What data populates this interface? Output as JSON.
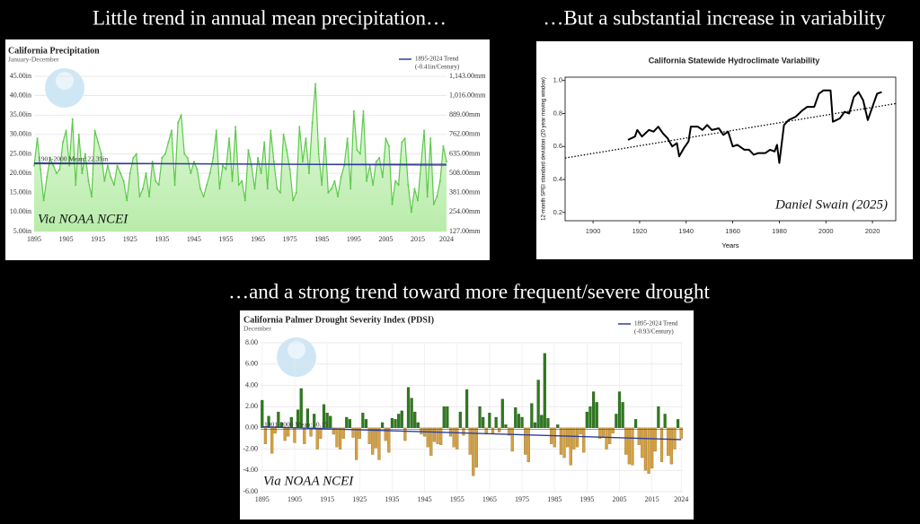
{
  "slide": {
    "headings": [
      "Little trend in annual mean precipitation…",
      "…But a substantial increase in variability",
      "…and a strong trend toward more frequent/severe drought"
    ]
  },
  "chart_data": [
    {
      "type": "line",
      "title": "California Precipitation",
      "subtitle": "January-December",
      "color": "#5cc94a",
      "fill_area": true,
      "fill_color": "#c8f0bd",
      "grid": true,
      "legend": "top-right",
      "annotation": "Via NOAA NCEI",
      "x": [
        1895,
        1896,
        1897,
        1898,
        1899,
        1900,
        1901,
        1902,
        1903,
        1904,
        1905,
        1906,
        1907,
        1908,
        1909,
        1910,
        1911,
        1912,
        1913,
        1914,
        1915,
        1916,
        1917,
        1918,
        1919,
        1920,
        1921,
        1922,
        1923,
        1924,
        1925,
        1926,
        1927,
        1928,
        1929,
        1930,
        1931,
        1932,
        1933,
        1934,
        1935,
        1936,
        1937,
        1938,
        1939,
        1940,
        1941,
        1942,
        1943,
        1944,
        1945,
        1946,
        1947,
        1948,
        1949,
        1950,
        1951,
        1952,
        1953,
        1954,
        1955,
        1956,
        1957,
        1958,
        1959,
        1960,
        1961,
        1962,
        1963,
        1964,
        1965,
        1966,
        1967,
        1968,
        1969,
        1970,
        1971,
        1972,
        1973,
        1974,
        1975,
        1976,
        1977,
        1978,
        1979,
        1980,
        1981,
        1982,
        1983,
        1984,
        1985,
        1986,
        1987,
        1988,
        1989,
        1990,
        1991,
        1992,
        1993,
        1994,
        1995,
        1996,
        1997,
        1998,
        1999,
        2000,
        2001,
        2002,
        2003,
        2004,
        2005,
        2006,
        2007,
        2008,
        2009,
        2010,
        2011,
        2012,
        2013,
        2014,
        2015,
        2016,
        2017,
        2018,
        2019,
        2020,
        2021,
        2022,
        2023,
        2024
      ],
      "values": [
        22,
        29,
        21,
        13,
        19,
        24,
        22,
        20,
        21,
        28,
        31,
        22,
        34,
        17,
        30,
        20,
        25,
        18,
        14,
        31,
        28,
        25,
        18,
        22,
        19,
        17,
        22,
        20,
        18,
        13,
        20,
        24,
        25,
        14,
        16,
        20,
        14,
        23,
        18,
        17,
        24,
        25,
        28,
        31,
        17,
        33,
        35,
        25,
        24,
        20,
        23,
        21,
        16,
        14,
        17,
        20,
        24,
        31,
        16,
        22,
        21,
        29,
        18,
        32,
        17,
        18,
        13,
        26,
        22,
        16,
        24,
        20,
        28,
        16,
        31,
        23,
        16,
        15,
        30,
        26,
        21,
        13,
        15,
        32,
        23,
        29,
        20,
        33,
        43,
        25,
        17,
        29,
        15,
        16,
        18,
        14,
        19,
        22,
        29,
        16,
        36,
        26,
        25,
        36,
        18,
        22,
        17,
        23,
        24,
        19,
        29,
        27,
        12,
        18,
        17,
        28,
        29,
        17,
        10,
        16,
        13,
        22,
        31,
        14,
        29,
        12,
        14,
        18,
        27,
        23
      ],
      "xlim": [
        1895,
        2024
      ],
      "xticks": [
        1895,
        1905,
        1915,
        1925,
        1935,
        1945,
        1955,
        1965,
        1975,
        1985,
        1995,
        2005,
        2015,
        2024
      ],
      "ylim": [
        5,
        45
      ],
      "yticks": [
        {
          "value": 5,
          "label": "5.00in"
        },
        {
          "value": 10,
          "label": "10.00in"
        },
        {
          "value": 15,
          "label": "15.00in"
        },
        {
          "value": 20,
          "label": "20.00in"
        },
        {
          "value": 25,
          "label": "25.00in"
        },
        {
          "value": 30,
          "label": "30.00in"
        },
        {
          "value": 35,
          "label": "35.00in"
        },
        {
          "value": 40,
          "label": "40.00in"
        },
        {
          "value": 45,
          "label": "45.00in"
        }
      ],
      "y2lim": [
        127,
        1143
      ],
      "y2ticks": [
        {
          "value": 127,
          "label": "127.00mm"
        },
        {
          "value": 254,
          "label": "254.00mm"
        },
        {
          "value": 381,
          "label": "381.00mm"
        },
        {
          "value": 508,
          "label": "508.00mm"
        },
        {
          "value": 635,
          "label": "635.00mm"
        },
        {
          "value": 762,
          "label": "762.00mm"
        },
        {
          "value": 889,
          "label": "889.00mm"
        },
        {
          "value": 1016,
          "label": "1,016.00mm"
        },
        {
          "value": 1143,
          "label": "1,143.00mm"
        }
      ],
      "mean_line": {
        "label": "1901-2000 Mean: 22.39in",
        "value": 22.39,
        "color": "#333333"
      },
      "trend": {
        "name": "1895-2024 Trend",
        "note": "(-0.41in/Century)",
        "color": "#2c3e9c",
        "x": [
          1895,
          2024
        ],
        "values": [
          22.65,
          22.12
        ]
      }
    },
    {
      "type": "line",
      "title": "California Statewide Hydroclimate Variability",
      "y_label": "12-month SPEI standard deviation (20 year moving window)",
      "x_label": "Years",
      "color": "#000000",
      "fill_area": false,
      "grid": false,
      "annotation": "Daniel Swain (2025)",
      "x": [
        1915,
        1918,
        1919,
        1921,
        1924,
        1926,
        1928,
        1930,
        1932,
        1934,
        1936,
        1937,
        1939,
        1941,
        1942,
        1945,
        1947,
        1949,
        1951,
        1954,
        1956,
        1958,
        1960,
        1962,
        1965,
        1967,
        1969,
        1971,
        1974,
        1976,
        1978,
        1979,
        1980,
        1982,
        1984,
        1987,
        1990,
        1992,
        1995,
        1997,
        1999,
        2002,
        2003,
        2006,
        2008,
        2010,
        2012,
        2014,
        2016,
        2018,
        2020,
        2022,
        2024
      ],
      "values": [
        0.64,
        0.66,
        0.7,
        0.66,
        0.7,
        0.69,
        0.72,
        0.68,
        0.65,
        0.6,
        0.62,
        0.54,
        0.59,
        0.63,
        0.72,
        0.72,
        0.7,
        0.73,
        0.7,
        0.71,
        0.67,
        0.69,
        0.6,
        0.61,
        0.58,
        0.58,
        0.55,
        0.56,
        0.56,
        0.58,
        0.57,
        0.61,
        0.5,
        0.73,
        0.76,
        0.78,
        0.82,
        0.84,
        0.84,
        0.92,
        0.94,
        0.94,
        0.75,
        0.77,
        0.81,
        0.8,
        0.9,
        0.93,
        0.88,
        0.76,
        0.84,
        0.92,
        0.93
      ],
      "xlim": [
        1888,
        2030
      ],
      "xticks": [
        1900,
        1920,
        1940,
        1960,
        1980,
        2000,
        2020
      ],
      "ylim": [
        0.15,
        1.02
      ],
      "yticks": [
        0.2,
        0.4,
        0.6,
        0.8,
        {
          "value": 1,
          "label": "1.0"
        }
      ],
      "trend": {
        "color": "#000000",
        "dotted": true,
        "x": [
          1888,
          2030
        ],
        "values": [
          0.53,
          0.86
        ]
      }
    },
    {
      "type": "bar",
      "title": "California Palmer Drought Severity Index (PDSI)",
      "subtitle": "December",
      "color": "#2f7a1f",
      "negative_color": "#d4a040",
      "grid": true,
      "legend": "top-right",
      "annotation": "Via NOAA NCEI",
      "x": [
        1895,
        1896,
        1897,
        1898,
        1899,
        1900,
        1901,
        1902,
        1903,
        1904,
        1905,
        1906,
        1907,
        1908,
        1909,
        1910,
        1911,
        1912,
        1913,
        1914,
        1915,
        1916,
        1917,
        1918,
        1919,
        1920,
        1921,
        1922,
        1923,
        1924,
        1925,
        1926,
        1927,
        1928,
        1929,
        1930,
        1931,
        1932,
        1933,
        1934,
        1935,
        1936,
        1937,
        1938,
        1939,
        1940,
        1941,
        1942,
        1943,
        1944,
        1945,
        1946,
        1947,
        1948,
        1949,
        1950,
        1951,
        1952,
        1953,
        1954,
        1955,
        1956,
        1957,
        1958,
        1959,
        1960,
        1961,
        1962,
        1963,
        1964,
        1965,
        1966,
        1967,
        1968,
        1969,
        1970,
        1971,
        1972,
        1973,
        1974,
        1975,
        1976,
        1977,
        1978,
        1979,
        1980,
        1981,
        1982,
        1983,
        1984,
        1985,
        1986,
        1987,
        1988,
        1989,
        1990,
        1991,
        1992,
        1993,
        1994,
        1995,
        1996,
        1997,
        1998,
        1999,
        2000,
        2001,
        2002,
        2003,
        2004,
        2005,
        2006,
        2007,
        2008,
        2009,
        2010,
        2011,
        2012,
        2013,
        2014,
        2015,
        2016,
        2017,
        2018,
        2019,
        2020,
        2021,
        2022,
        2023,
        2024
      ],
      "values": [
        2.6,
        -1.5,
        1.1,
        -2.4,
        -0.5,
        1.5,
        0.5,
        -1.2,
        -0.8,
        1,
        -1.4,
        1.7,
        3.7,
        -1.5,
        1.8,
        -0.8,
        1.3,
        -2,
        -1,
        2.2,
        1.4,
        1.1,
        -0.6,
        -1.8,
        -2,
        -1,
        1,
        0.8,
        -0.9,
        -3,
        -1,
        1.4,
        0.8,
        -1.5,
        -2.5,
        -1.9,
        -3,
        0.5,
        -1.2,
        -2.3,
        0.9,
        0.8,
        1.3,
        1.6,
        -1.2,
        3.8,
        2.8,
        1.5,
        0.5,
        -0.6,
        -0.8,
        -1.8,
        -2.6,
        -1.3,
        -1.5,
        -1.6,
        2,
        2,
        -0.8,
        -1.8,
        -2,
        1.5,
        -0.7,
        3.6,
        -2.5,
        -4.5,
        -3.7,
        2,
        1,
        -0.6,
        1.4,
        -0.5,
        1,
        -0.4,
        2.7,
        0.3,
        -0.7,
        -2.2,
        1.9,
        1.3,
        1,
        -2.5,
        -3.2,
        2.3,
        0.5,
        4.5,
        1.2,
        7,
        0.9,
        -1.5,
        -1.8,
        0.3,
        -2.5,
        -2.8,
        -1.8,
        -3.5,
        -2,
        -1.8,
        -0.6,
        -2.3,
        1.5,
        2,
        3.4,
        2.4,
        -1,
        -0.8,
        -2,
        -1.5,
        -0.5,
        1.3,
        3.4,
        2.4,
        -2.5,
        -3.4,
        -3.5,
        0.8,
        -1.6,
        -2.8,
        -4,
        -4.3,
        -3.8,
        -2.2,
        2,
        -3.2,
        1.3,
        -2.6,
        -3.4,
        -2,
        0.8,
        -1
      ],
      "xlim": [
        1894.5,
        2024.5
      ],
      "xticks": [
        1895,
        1905,
        1915,
        1925,
        1935,
        1945,
        1955,
        1965,
        1975,
        1985,
        1995,
        2005,
        2015,
        2024
      ],
      "ylim": [
        -6,
        8
      ],
      "yticks": [
        {
          "value": -6,
          "label": "-6.00"
        },
        {
          "value": -4,
          "label": "-4.00"
        },
        {
          "value": -2,
          "label": "-2.00"
        },
        {
          "value": 0,
          "label": "0.00"
        },
        {
          "value": 2,
          "label": "2.00"
        },
        {
          "value": 4,
          "label": "4.00"
        },
        {
          "value": 6,
          "label": "6.00"
        },
        {
          "value": 8,
          "label": "8.00"
        }
      ],
      "mean_line": {
        "label": "1901-2000 Mean: -0.15",
        "value": -0.15,
        "color": "#333333"
      },
      "trend": {
        "name": "1895-2024 Trend",
        "note": "(-0.93/Century)",
        "color": "#2c3e9c",
        "x": [
          1895,
          2024
        ],
        "values": [
          0.1,
          -1.1
        ]
      }
    }
  ]
}
